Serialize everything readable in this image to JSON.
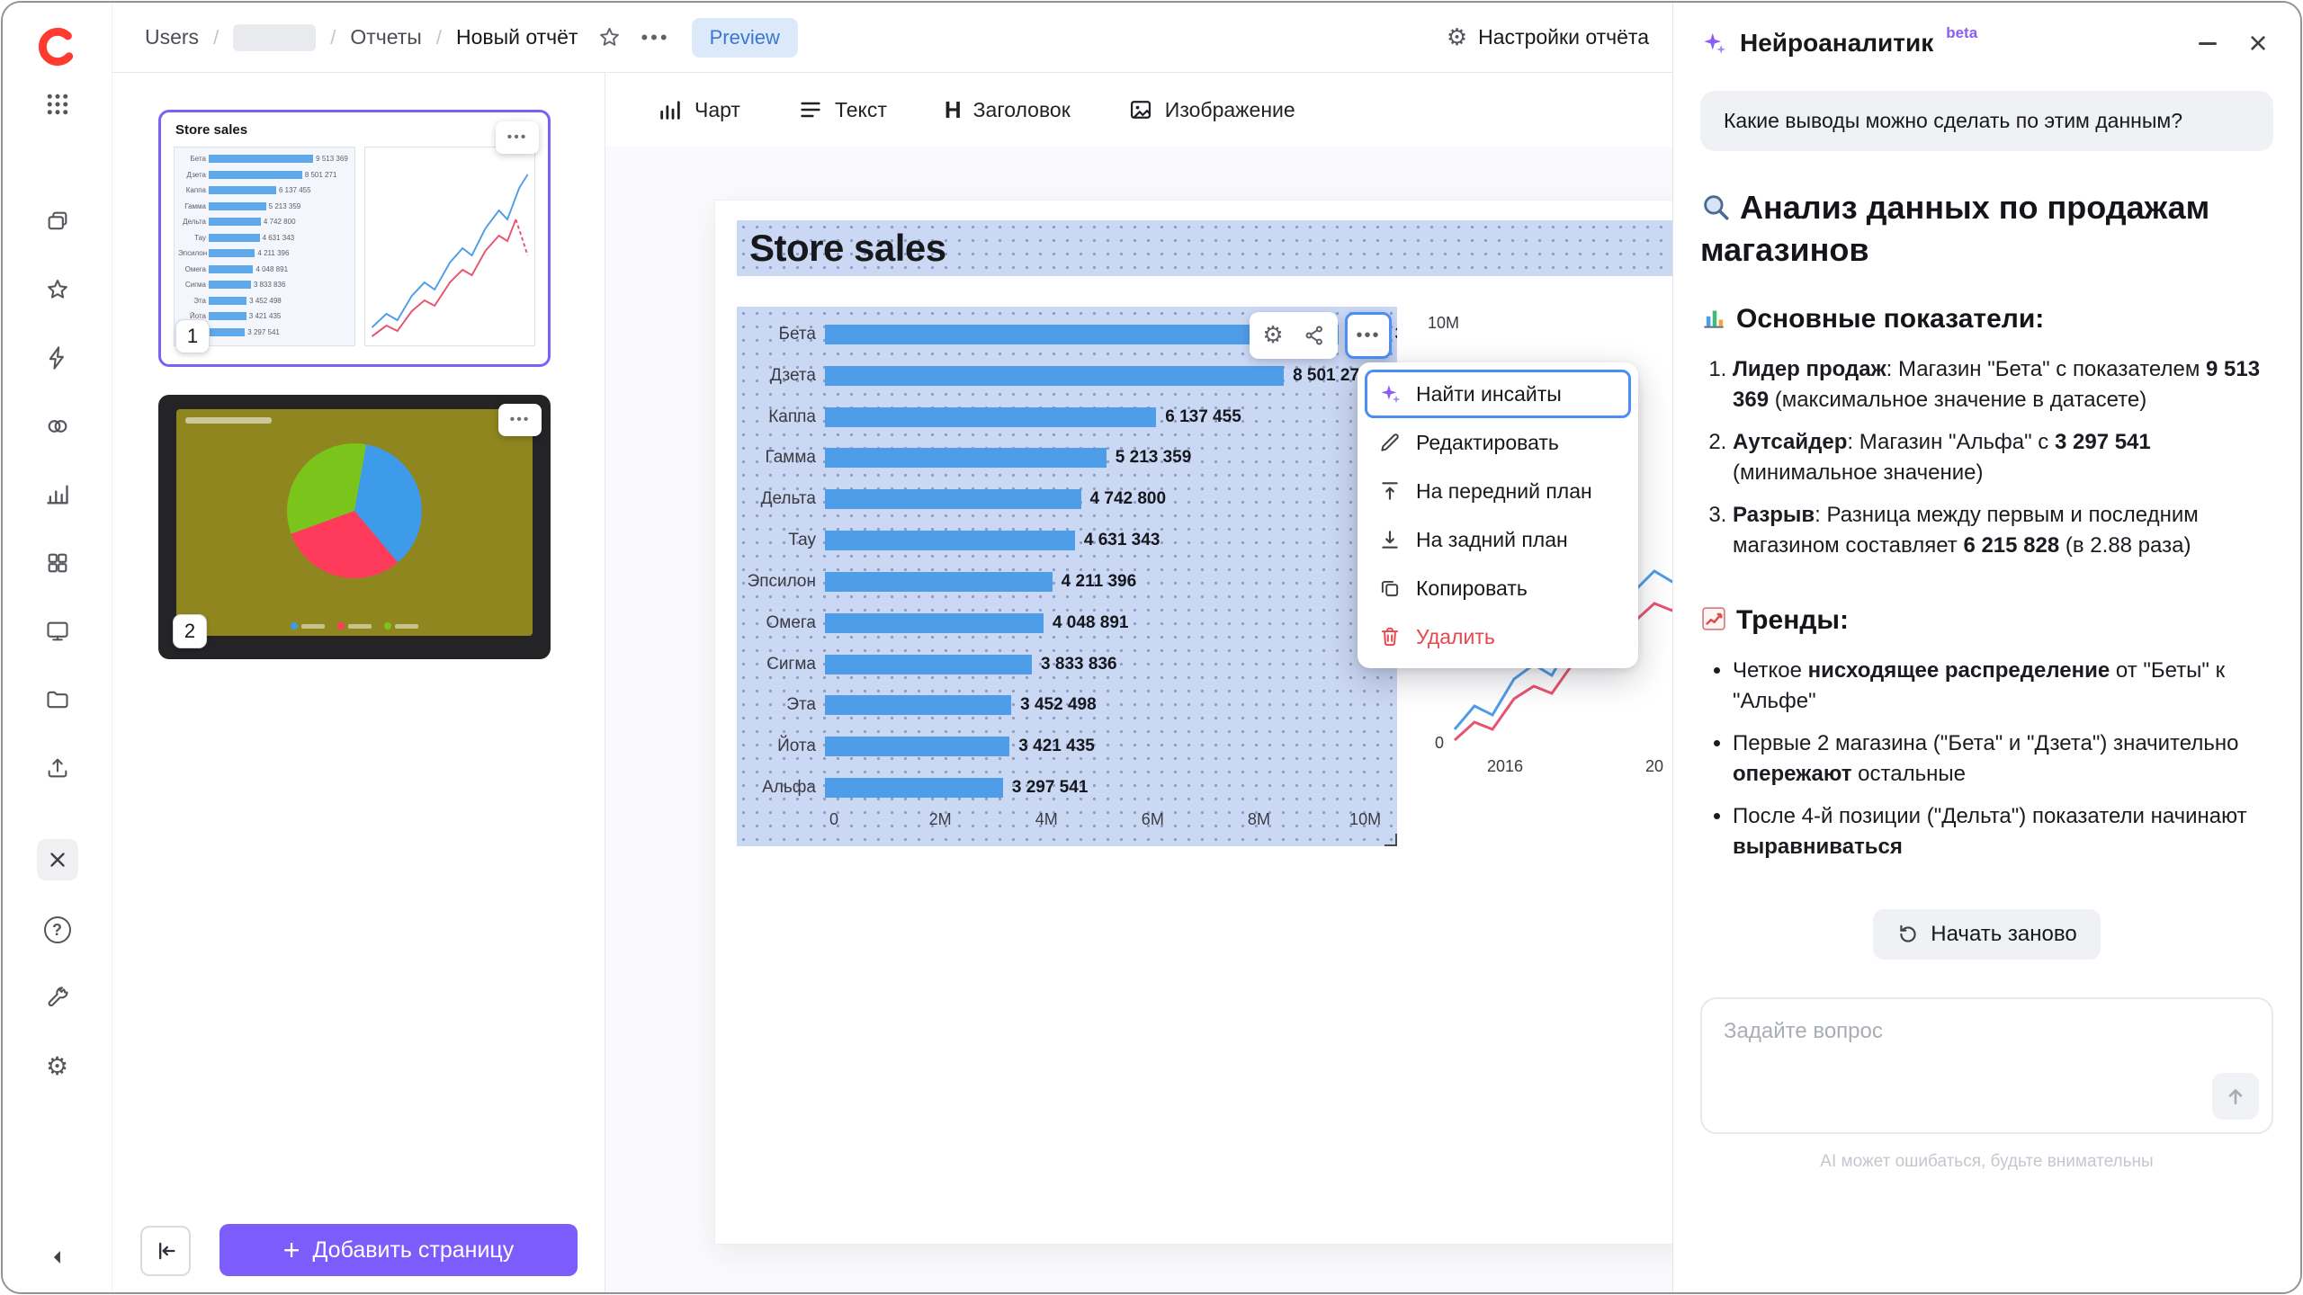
{
  "header": {
    "breadcrumbs": [
      "Users",
      "Отчеты",
      "Новый отчёт"
    ],
    "preview": "Preview",
    "settings": "Настройки отчёта"
  },
  "toolbar": {
    "items": [
      {
        "icon": "chart-icon",
        "label": "Чарт"
      },
      {
        "icon": "text-icon",
        "label": "Текст"
      },
      {
        "icon": "heading-icon",
        "label": "Заголовок"
      },
      {
        "icon": "image-icon",
        "label": "Изображение"
      }
    ]
  },
  "sidebar": {
    "icons": [
      "datalens-logo",
      "apps-grid-icon",
      "collections-icon",
      "favorites-icon",
      "flash-icon",
      "relations-icon",
      "charts-icon",
      "grid-icon",
      "dashboards-icon",
      "folder-icon",
      "upload-icon",
      "close-icon",
      "help-icon",
      "tools-icon",
      "settings-icon",
      "collapse-icon"
    ]
  },
  "pages_panel": {
    "page1": {
      "number": "1",
      "chart_title": "Store sales"
    },
    "page2": {
      "number": "2"
    },
    "add_page_label": "Добавить страницу"
  },
  "chart_data": {
    "type": "bar",
    "orientation": "horizontal",
    "title": "Store sales",
    "categories": [
      "Бета",
      "Дзета",
      "Каппа",
      "Гамма",
      "Дельта",
      "Тау",
      "Эпсилон",
      "Омега",
      "Сигма",
      "Эта",
      "Йота",
      "Альфа"
    ],
    "values": [
      9513369,
      8501271,
      6137455,
      5213359,
      4742800,
      4631343,
      4211396,
      4048891,
      3833836,
      3452498,
      3421435,
      3297541
    ],
    "value_labels": [
      "9 513 369",
      "8 501 271",
      "6 137 455",
      "5 213 359",
      "4 742 800",
      "4 631 343",
      "4 211 396",
      "4 048 891",
      "3 833 836",
      "3 452 498",
      "3 421 435",
      "3 297 541"
    ],
    "x_ticks": [
      "0",
      "2M",
      "4M",
      "6M",
      "8M",
      "10M"
    ],
    "xlim": [
      0,
      10000000
    ],
    "bar_color": "#4D9DE8",
    "grid": false,
    "legend": false
  },
  "line_chart": {
    "type": "line",
    "y_top_label": "10M",
    "y_bottom_label": "0",
    "x_ticks": [
      "2016",
      "20"
    ],
    "series_colors": [
      "#4D9DE8",
      "#E8536F"
    ]
  },
  "pie_thumbnail": {
    "type": "pie",
    "slice_colors": [
      "#3D9BE9",
      "#FF3B5C",
      "#7AC41C"
    ]
  },
  "widget_menu": {
    "items": [
      {
        "icon": "insights-sparkle-icon",
        "label": "Найти инсайты",
        "focused": true
      },
      {
        "icon": "pencil-icon",
        "label": "Редактировать"
      },
      {
        "icon": "bring-to-front-icon",
        "label": "На передний план"
      },
      {
        "icon": "send-to-back-icon",
        "label": "На задний план"
      },
      {
        "icon": "copy-icon",
        "label": "Копировать"
      },
      {
        "icon": "trash-icon",
        "label": "Удалить",
        "danger": true
      }
    ]
  },
  "ai_panel": {
    "title": "Нейроаналитик",
    "badge": "beta",
    "user_question": "Какие выводы можно сделать по этим данным?",
    "analysis_heading": "Анализ данных по продажам магазинов",
    "metrics_heading": "Основные показатели:",
    "metrics": [
      "**Лидер продаж**: Магазин \"Бета\" с показателем **9 513 369** (максимальное значение в датасете)",
      "**Аутсайдер**: Магазин \"Альфа\" с **3 297 541** (минимальное значение)",
      "**Разрыв**: Разница между первым и последним магазином составляет **6 215 828** (в 2.88 раза)"
    ],
    "trends_heading": "Тренды:",
    "trends": [
      "Четкое **нисходящее распределение** от \"Беты\" к \"Альфе\"",
      "Первые 2 магазина (\"Бета\" и \"Дзета\") значительно **опережают** остальные",
      "После 4-й позиции (\"Дельта\") показатели начинают **выравниваться**"
    ],
    "restart_label": "Начать заново",
    "input_placeholder": "Задайте вопрос",
    "disclaimer": "AI может ошибаться, будьте внимательны"
  },
  "colors": {
    "accent_purple": "#7C5CFA",
    "selection_blue": "#CBD8F3",
    "bar_blue": "#4D9DE8",
    "danger_red": "#E5484D",
    "preview_blue": "#3A77D4",
    "sparkle_purple": "#8B5CF6"
  }
}
